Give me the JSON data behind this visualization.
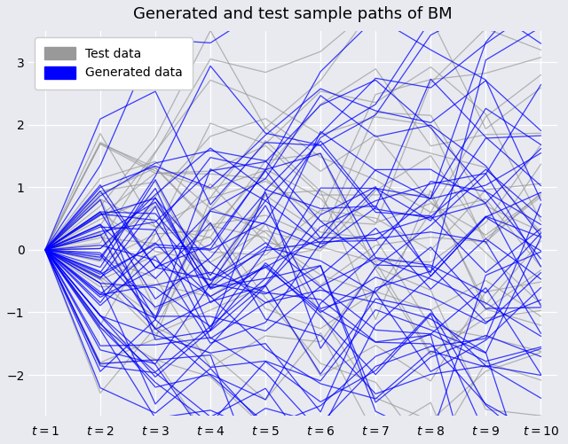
{
  "title": "Generated and test sample paths of BM",
  "x_ticks": [
    1,
    2,
    3,
    4,
    5,
    6,
    7,
    8,
    9,
    10
  ],
  "x_tick_labels": [
    "$t=1$",
    "$t=2$",
    "$t=3$",
    "$t=4$",
    "$t=5$",
    "$t=6$",
    "$t=7$",
    "$t=8$",
    "$t=9$",
    "$t=10$"
  ],
  "ylim": [
    -2.65,
    3.5
  ],
  "n_test": 30,
  "n_generated": 50,
  "n_steps": 9,
  "seed_test": 7,
  "seed_gen": 13,
  "gray_color": "#999999",
  "blue_color": "#0000ff",
  "gray_alpha": 0.7,
  "blue_alpha": 0.75,
  "linewidth": 0.9,
  "background_color": "#e8eaf0",
  "title_fontsize": 13,
  "legend_fontsize": 10,
  "tick_fontsize": 10,
  "xlim": [
    0.7,
    10.3
  ]
}
